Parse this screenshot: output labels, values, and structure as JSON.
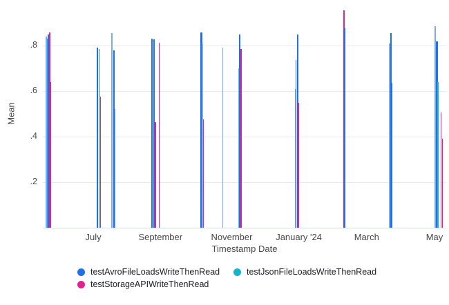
{
  "chart_data": {
    "type": "bar",
    "title": "",
    "xlabel": "Timestamp Date",
    "ylabel": "Mean",
    "ylim": [
      0,
      1.0
    ],
    "grid": true,
    "legend_position": "bottom",
    "colors": {
      "axis_text": "#444746",
      "gridline": "#e9e9e9",
      "axis_line": "#cfe0f5"
    },
    "yticks": [
      {
        "value": 0.2,
        "label": ".2"
      },
      {
        "value": 0.4,
        "label": ".4"
      },
      {
        "value": 0.6,
        "label": ".6"
      },
      {
        "value": 0.8,
        "label": ".8"
      }
    ],
    "xticks": [
      {
        "pos": 0.1252,
        "label": "July"
      },
      {
        "pos": 0.2916,
        "label": "September"
      },
      {
        "pos": 0.4683,
        "label": "November"
      },
      {
        "pos": 0.6346,
        "label": "January '24"
      },
      {
        "pos": 0.8027,
        "label": "March"
      },
      {
        "pos": 0.9709,
        "label": "May"
      }
    ],
    "series": [
      {
        "key": "avro",
        "name": "testAvroFileLoadsWriteThenRead",
        "color": "#1e6fe8",
        "color_light": "#7baaf7"
      },
      {
        "key": "json",
        "name": "testJsonFileLoadsWriteThenRead",
        "color": "#12b5cb",
        "color_light": "#6fd2dd"
      },
      {
        "key": "storage",
        "name": "testStorageAPIWriteThenRead",
        "color": "#e2238f",
        "color_light": "#f07ab8"
      }
    ],
    "bars": [
      {
        "x": 0.0086,
        "v": 0.84,
        "s": "avro",
        "shade": "light"
      },
      {
        "x": 0.0111,
        "v": 0.83,
        "s": "json"
      },
      {
        "x": 0.0137,
        "v": 0.85,
        "s": "avro",
        "w": 2.5
      },
      {
        "x": 0.0172,
        "v": 0.857,
        "s": "storage"
      },
      {
        "x": 0.0197,
        "v": 0.64,
        "s": "storage"
      },
      {
        "x": 0.1355,
        "v": 0.79,
        "s": "avro",
        "w": 2
      },
      {
        "x": 0.1398,
        "v": 0.785,
        "s": "avro"
      },
      {
        "x": 0.1432,
        "v": 0.575,
        "s": "storage"
      },
      {
        "x": 0.1715,
        "v": 0.855,
        "s": "avro",
        "shade": "light"
      },
      {
        "x": 0.1758,
        "v": 0.78,
        "s": "avro",
        "w": 2
      },
      {
        "x": 0.1792,
        "v": 0.52,
        "s": "avro",
        "shade": "light"
      },
      {
        "x": 0.2702,
        "v": 0.83,
        "s": "avro",
        "w": 2
      },
      {
        "x": 0.2753,
        "v": 0.828,
        "s": "avro"
      },
      {
        "x": 0.2787,
        "v": 0.465,
        "s": "storage"
      },
      {
        "x": 0.2882,
        "v": 0.812,
        "s": "storage"
      },
      {
        "x": 0.3928,
        "v": 0.857,
        "s": "avro",
        "w": 2.5
      },
      {
        "x": 0.3954,
        "v": 0.81,
        "s": "avro",
        "shade": "light"
      },
      {
        "x": 0.3979,
        "v": 0.475,
        "s": "storage"
      },
      {
        "x": 0.446,
        "v": 0.79,
        "s": "avro",
        "shade": "light"
      },
      {
        "x": 0.4854,
        "v": 0.7,
        "s": "avro",
        "shade": "light"
      },
      {
        "x": 0.488,
        "v": 0.848,
        "s": "avro",
        "w": 2.5
      },
      {
        "x": 0.4914,
        "v": 0.785,
        "s": "storage"
      },
      {
        "x": 0.6261,
        "v": 0.61,
        "s": "avro",
        "shade": "light"
      },
      {
        "x": 0.6278,
        "v": 0.735,
        "s": "avro"
      },
      {
        "x": 0.6312,
        "v": 0.85,
        "s": "avro",
        "w": 2
      },
      {
        "x": 0.6338,
        "v": 0.55,
        "s": "storage"
      },
      {
        "x": 0.7461,
        "v": 0.955,
        "s": "storage",
        "w": 2
      },
      {
        "x": 0.7487,
        "v": 0.875,
        "s": "avro",
        "w": 2
      },
      {
        "x": 0.8593,
        "v": 0.81,
        "s": "avro",
        "shade": "light"
      },
      {
        "x": 0.8628,
        "v": 0.855,
        "s": "avro",
        "w": 2
      },
      {
        "x": 0.8653,
        "v": 0.635,
        "s": "avro"
      },
      {
        "x": 0.9726,
        "v": 0.885,
        "s": "avro",
        "shade": "light",
        "w": 2
      },
      {
        "x": 0.9769,
        "v": 0.818,
        "s": "avro",
        "w": 2.5
      },
      {
        "x": 0.9795,
        "v": 0.64,
        "s": "json"
      },
      {
        "x": 0.9872,
        "v": 0.505,
        "s": "storage"
      },
      {
        "x": 0.9906,
        "v": 0.39,
        "s": "storage"
      }
    ]
  }
}
